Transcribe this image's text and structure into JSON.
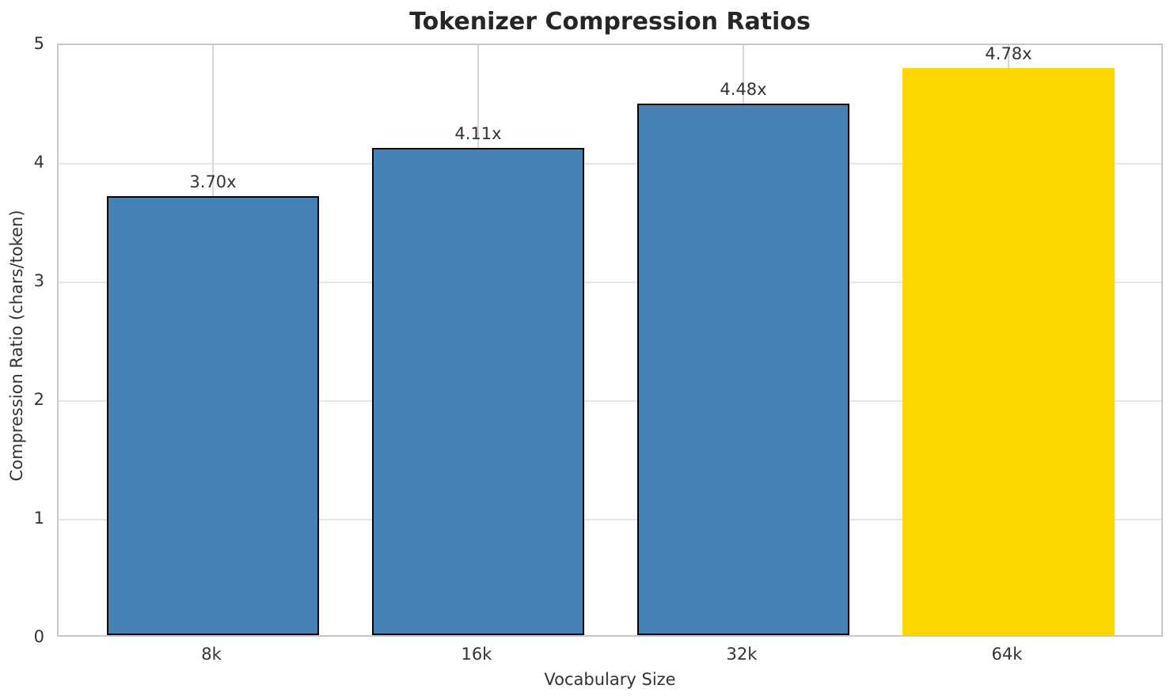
{
  "chart_data": {
    "type": "bar",
    "title": "Tokenizer Compression Ratios",
    "xlabel": "Vocabulary Size",
    "ylabel": "Compression Ratio (chars/token)",
    "categories": [
      "8k",
      "16k",
      "32k",
      "64k"
    ],
    "values": [
      3.7,
      4.11,
      4.48,
      4.78
    ],
    "bar_labels": [
      "3.70x",
      "4.11x",
      "4.48x",
      "4.78x"
    ],
    "bar_colors": [
      "#4682b4",
      "#4682b4",
      "#4682b4",
      "#ffd700"
    ],
    "bar_edge_colors": [
      "#000000",
      "#000000",
      "#000000",
      "none"
    ],
    "highlight_category": "64k",
    "ylim": [
      0,
      5
    ],
    "yticks": [
      "0",
      "1",
      "2",
      "3",
      "4",
      "5"
    ],
    "grid": true,
    "legend": false
  },
  "colors": {
    "default_bar": "#4682b4",
    "highlight_bar": "#ffd700",
    "bar_edge": "#000000",
    "grid_horizontal": "#e4e4e4",
    "grid_vertical": "#d6d6d6",
    "spine": "#c8c8c8",
    "title_text": "#262626",
    "text": "#333333",
    "background": "#ffffff"
  }
}
